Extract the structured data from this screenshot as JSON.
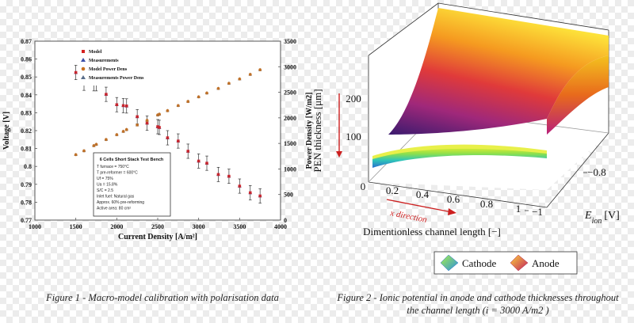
{
  "chart_data": [
    {
      "type": "scatter",
      "title": "",
      "xlabel": "Current Density [A/m²]",
      "ylabel": "Voltage [V]",
      "y2label": "Power Density [W/m2]",
      "xlim": [
        1000,
        4000
      ],
      "ylim": [
        0.77,
        0.87
      ],
      "y2lim": [
        0,
        3500
      ],
      "xticks": [
        "1000",
        "1500",
        "2000",
        "2500",
        "3000",
        "3500",
        "4000"
      ],
      "yticks": [
        "0.77",
        "0.78",
        "0.79",
        "0.8",
        "0.81",
        "0.82",
        "0.83",
        "0.84",
        "0.85",
        "0.86",
        "0.87"
      ],
      "y2ticks": [
        "0",
        "500",
        "1000",
        "1500",
        "2000",
        "2500",
        "3000",
        "3500"
      ],
      "grid": false,
      "legend_placement": "top-left",
      "legend": [
        "Model",
        "Measurements",
        "Model Power Dens",
        "Measurements Power Dens"
      ],
      "annotation": {
        "title": "6 Cells Short Stack Test Bench",
        "lines": [
          "T furnace = 750°C",
          "T pre-reformer = 600°C",
          "Uf = 75%",
          "Ua = 15.8%",
          "S/C = 2.5",
          "Inlet fuel: Natural gas",
          "Approx. 60% pre-reforming",
          "Active area: 80 cm²"
        ]
      },
      "x": [
        1500,
        1600,
        1720,
        1750,
        1870,
        2000,
        2080,
        2120,
        2250,
        2370,
        2500,
        2520,
        2620,
        2750,
        2870,
        3000,
        3100,
        3240,
        3370,
        3500,
        3630,
        3750
      ],
      "series": [
        {
          "name": "Model",
          "axis": "left",
          "color": "#d42020",
          "values": [
            0.8525,
            0.8465,
            0.8462,
            0.8462,
            0.8403,
            0.8345,
            0.834,
            0.8338,
            0.8278,
            0.8242,
            0.8222,
            0.8218,
            0.816,
            0.8142,
            0.8085,
            0.803,
            0.8018,
            0.7955,
            0.7945,
            0.789,
            0.7853,
            0.7835
          ]
        },
        {
          "name": "Measurements",
          "axis": "left",
          "color": "#3a4fa8",
          "error": 0.004,
          "values": [
            0.8525,
            0.8465,
            0.8462,
            0.8462,
            0.8403,
            0.8345,
            0.834,
            0.8338,
            0.8278,
            0.8242,
            0.8222,
            0.8218,
            0.816,
            0.8142,
            0.8085,
            0.803,
            0.8018,
            0.7955,
            0.7945,
            0.789,
            0.7853,
            0.7835
          ]
        },
        {
          "name": "Model Power Dens",
          "axis": "right",
          "color": "#c8701e",
          "values": [
            1280,
            1355,
            1455,
            1480,
            1575,
            1670,
            1735,
            1770,
            1860,
            1950,
            2055,
            2070,
            2140,
            2240,
            2320,
            2410,
            2485,
            2575,
            2675,
            2760,
            2850,
            2940
          ]
        },
        {
          "name": "Measurements Power Dens",
          "axis": "right",
          "color": "#5a6e8a",
          "values": [
            1280,
            1355,
            1455,
            1480,
            1575,
            1670,
            1735,
            1770,
            1860,
            1950,
            2055,
            2070,
            2140,
            2240,
            2320,
            2410,
            2485,
            2575,
            2675,
            2760,
            2850,
            2940
          ]
        }
      ]
    },
    {
      "type": "surface",
      "title": "",
      "xlabel": "Dimentionless channel length [−]",
      "ylabel": "PEN thickness [μm]",
      "zlabel": "E_ion [V]",
      "xticks": [
        "0",
        "0.2",
        "0.4",
        "0.6",
        "0.8",
        "1"
      ],
      "yticks": [
        "100",
        "200"
      ],
      "zticks": [
        "−0.8",
        "−1"
      ],
      "annotation": "x direction",
      "legend": [
        "Cathode",
        "Anode"
      ],
      "colors": {
        "cathode": "#3fd0c0",
        "anode": "#e8452a"
      }
    }
  ],
  "captions": {
    "figure1": "Figure 1 - Macro-model calibration with polarisation data",
    "figure2": "Figure 2 - Ionic potential in anode and cathode thicknesses throughout the channel length (i = 3000 A/m2 )"
  }
}
